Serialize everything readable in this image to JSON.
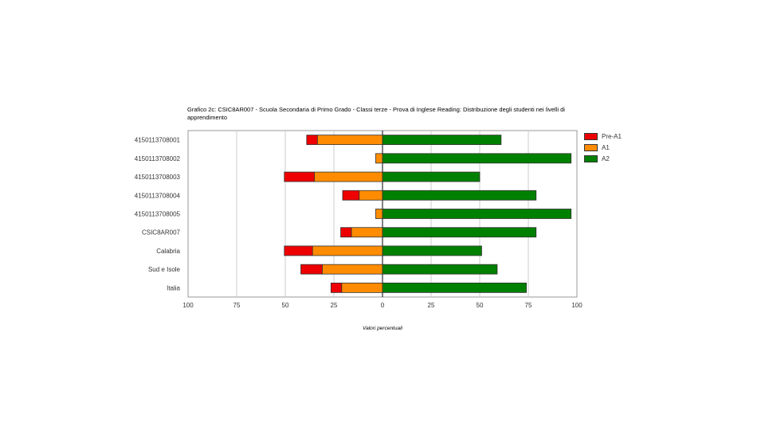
{
  "chart_data": {
    "type": "bar",
    "orientation": "horizontal",
    "stacked": "diverging",
    "title": "Grafico 2c: CSIC8AR007 - Scuola Secondaria di Primo Grado - Classi terze - Prova di Inglese Reading: Distribuzione degli studenti nei livelli di apprendimento",
    "xlabel": "Valori percentuali",
    "ylabel": "",
    "xlim": [
      -100,
      100
    ],
    "x_ticks": [
      "100",
      "75",
      "50",
      "25",
      "0",
      "25",
      "50",
      "75",
      "100"
    ],
    "categories": [
      "4150113708001",
      "4150113708002",
      "4150113708003",
      "4150113708004",
      "4150113708005",
      "CSIC8AR007",
      "Calabria",
      "Sud e Isole",
      "Italia"
    ],
    "series": [
      {
        "name": "Pre-A1",
        "color": "#ee0000",
        "side": "left",
        "values": [
          5.5,
          0,
          15.5,
          8.5,
          0,
          5.5,
          14.5,
          11,
          5.5
        ]
      },
      {
        "name": "A1",
        "color": "#ff8c00",
        "side": "left",
        "values": [
          33.5,
          3.5,
          35,
          12,
          3.5,
          16,
          36,
          31,
          21
        ]
      },
      {
        "name": "A2",
        "color": "#008000",
        "side": "right",
        "values": [
          61,
          97,
          50,
          79,
          97,
          79,
          51,
          59,
          74
        ]
      }
    ],
    "grid": true,
    "legend_position": "right"
  }
}
